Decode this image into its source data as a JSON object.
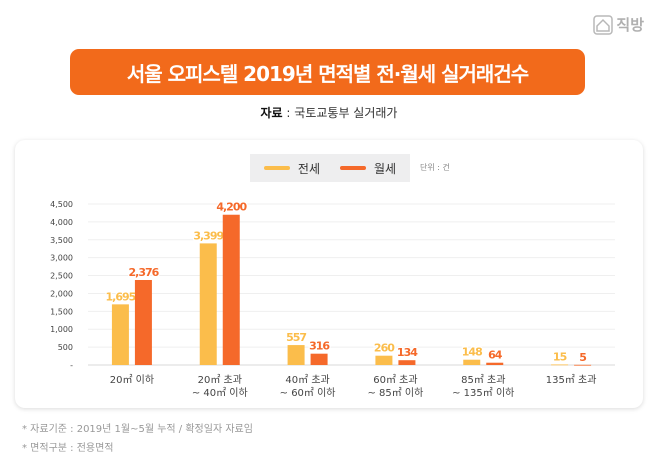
{
  "brand": {
    "name": "직방"
  },
  "title": "서울 오피스텔 2019년 면적별 전·월세 실거래건수",
  "source": {
    "label": "자료",
    "value": " : 국토교통부 실거래가"
  },
  "unit": "단위 : 건",
  "notes": [
    "* 자료기준 : 2019년 1월~5월 누적 / 확정일자 자료임",
    "* 면적구분 : 전용면적"
  ],
  "colors": {
    "jeonse": "#fbbd4b",
    "wolse": "#f5692a",
    "title_bg": "#f26a1b"
  },
  "chart_data": {
    "type": "bar",
    "categories": [
      [
        "20㎡ 이하"
      ],
      [
        "20㎡ 초과",
        "~ 40㎡ 이하"
      ],
      [
        "40㎡ 초과",
        "~ 60㎡ 이하"
      ],
      [
        "60㎡ 초과",
        "~ 85㎡ 이하"
      ],
      [
        "85㎡ 초과",
        "~ 135㎡ 이하"
      ],
      [
        "135㎡ 초과"
      ]
    ],
    "series": [
      {
        "name": "전세",
        "values": [
          1695,
          3399,
          557,
          260,
          148,
          15
        ],
        "labels": [
          "1,695",
          "3,399",
          "557",
          "260",
          "148",
          "15"
        ]
      },
      {
        "name": "월세",
        "values": [
          2376,
          4200,
          316,
          134,
          64,
          5
        ],
        "labels": [
          "2,376",
          "4,200",
          "316",
          "134",
          "64",
          "5"
        ]
      }
    ],
    "ylim": [
      0,
      4500
    ],
    "yticks": [
      0,
      500,
      1000,
      1500,
      2000,
      2500,
      3000,
      3500,
      4000,
      4500
    ],
    "ytick_labels": [
      "-",
      "500",
      "1,000",
      "1,500",
      "2,000",
      "2,500",
      "3,000",
      "3,500",
      "4,000",
      "4,500"
    ],
    "grid": true,
    "legend": "top-center"
  }
}
